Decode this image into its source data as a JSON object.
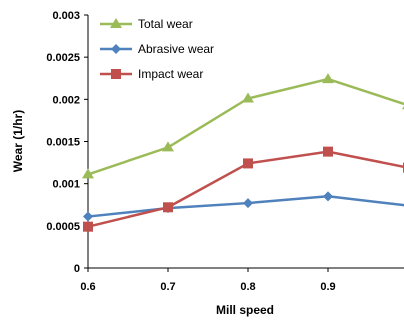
{
  "chart_data": {
    "type": "line",
    "title": "",
    "xlabel": "Mill speed",
    "ylabel": "Wear (1/hr)",
    "x": [
      0.6,
      0.7,
      0.8,
      0.9,
      1.0
    ],
    "x_tick_labels": [
      "0.6",
      "0.7",
      "0.8",
      "0.9"
    ],
    "y_tick_labels": [
      "0",
      "0.0005",
      "0.001",
      "0.0015",
      "0.002",
      "0.0025",
      "0.003"
    ],
    "xlim": [
      0.6,
      1.0
    ],
    "ylim": [
      0,
      0.003
    ],
    "grid": false,
    "legend_position": "top-left",
    "series": [
      {
        "name": "Total wear",
        "color": "#9BBB59",
        "marker": "triangle",
        "values": [
          0.00111,
          0.00143,
          0.00201,
          0.00224,
          0.00193
        ]
      },
      {
        "name": "Abrasive wear",
        "color": "#4F81BD",
        "marker": "diamond",
        "values": [
          0.00061,
          0.00071,
          0.00077,
          0.00085,
          0.00074
        ]
      },
      {
        "name": "Impact wear",
        "color": "#C0504D",
        "marker": "square",
        "values": [
          0.00049,
          0.00072,
          0.00124,
          0.00138,
          0.00119
        ]
      }
    ]
  }
}
